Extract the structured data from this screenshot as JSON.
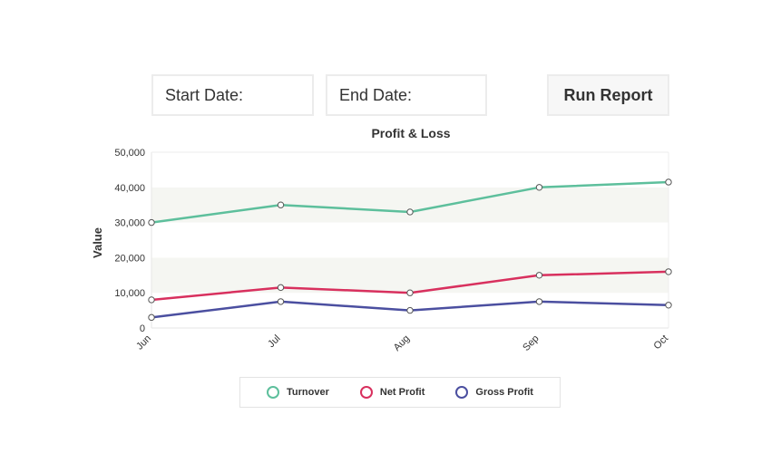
{
  "filters": {
    "start_date_label": "Start Date:",
    "end_date_label": "End Date:",
    "run_button_label": "Run Report"
  },
  "chart_data": {
    "type": "line",
    "title": "Profit & Loss",
    "xlabel": "",
    "ylabel": "Value",
    "ylim": [
      0,
      50000
    ],
    "yticks": [
      0,
      10000,
      20000,
      30000,
      40000,
      50000
    ],
    "ytick_labels": [
      "0",
      "10,000",
      "20,000",
      "30,000",
      "40,000",
      "50,000"
    ],
    "categories": [
      "Jun",
      "Jul",
      "Aug",
      "Sep",
      "Oct"
    ],
    "series": [
      {
        "name": "Turnover",
        "color": "#5dbf9c",
        "values": [
          30000,
          35000,
          33000,
          40000,
          41500
        ]
      },
      {
        "name": "Net Profit",
        "color": "#d8305e",
        "values": [
          8000,
          11500,
          10000,
          15000,
          16000
        ]
      },
      {
        "name": "Gross Profit",
        "color": "#4b4fa0",
        "values": [
          3000,
          7500,
          5000,
          7500,
          6500
        ]
      }
    ],
    "grid": "alternating horizontal bands",
    "legend_position": "bottom"
  }
}
